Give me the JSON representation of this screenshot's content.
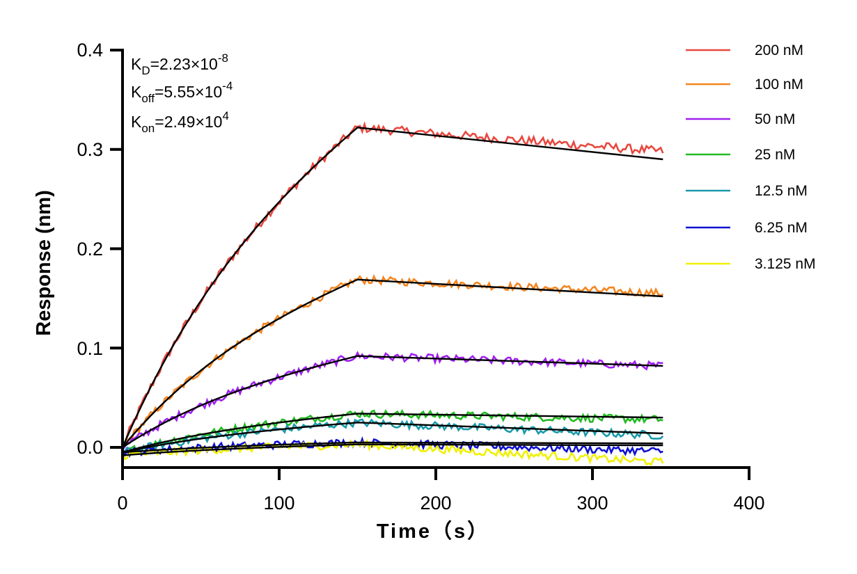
{
  "chart_data": {
    "type": "line",
    "title": "",
    "xlabel": "Time（s）",
    "ylabel": "Response (nm)",
    "xlim": [
      0,
      400
    ],
    "ylim": [
      -0.02,
      0.4
    ],
    "xticks": [
      "0",
      "100",
      "200",
      "300",
      "400"
    ],
    "yticks": [
      "0.0",
      "0.1",
      "0.2",
      "0.3",
      "0.4"
    ],
    "grid": false,
    "legend_position": "top-right",
    "association_end": 150,
    "end_time": 345,
    "annotations": {
      "kd": {
        "main": "K",
        "sub": "D",
        "value": "=2.23×10",
        "exp": "-8"
      },
      "koff": {
        "main": "K",
        "sub": "off",
        "value": "=5.55×10",
        "exp": "-4"
      },
      "kon": {
        "main": "K",
        "sub": "on",
        "value": "=2.49×10",
        "exp": "4"
      }
    },
    "series": [
      {
        "name": "200 nM",
        "color": "#e8483f",
        "start": 0.0,
        "peak": 0.322,
        "end": 0.29,
        "measured_end": 0.298,
        "noise": 0.0045
      },
      {
        "name": "100 nM",
        "color": "#f5851f",
        "start": 0.0,
        "peak": 0.169,
        "end": 0.152,
        "measured_end": 0.155,
        "noise": 0.004
      },
      {
        "name": "50 nM",
        "color": "#a020f0",
        "start": 0.0,
        "peak": 0.092,
        "end": 0.082,
        "measured_end": 0.082,
        "noise": 0.004
      },
      {
        "name": "25 nM",
        "color": "#22bb22",
        "start": -0.005,
        "peak": 0.034,
        "end": 0.03,
        "measured_end": 0.028,
        "noise": 0.004
      },
      {
        "name": "12.5 nM",
        "color": "#1a9aaa",
        "start": -0.005,
        "peak": 0.025,
        "end": 0.014,
        "measured_end": 0.012,
        "noise": 0.004
      },
      {
        "name": "6.25 nM",
        "color": "#1010d0",
        "start": -0.005,
        "peak": 0.005,
        "end": 0.004,
        "measured_end": -0.004,
        "noise": 0.004
      },
      {
        "name": "3.125 nM",
        "color": "#f0f000",
        "start": -0.008,
        "peak": 0.003,
        "end": 0.002,
        "measured_end": -0.015,
        "noise": 0.004
      }
    ],
    "fit_color": "#000000"
  }
}
